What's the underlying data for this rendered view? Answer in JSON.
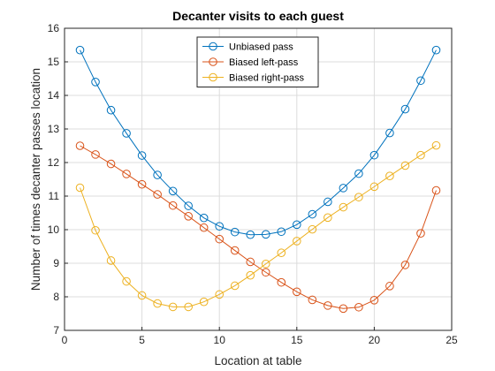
{
  "chart_data": {
    "type": "line",
    "title": "Decanter visits to each guest",
    "xlabel": "Location at table",
    "ylabel": "Number of times decanter passes location",
    "xlim": [
      0,
      25
    ],
    "ylim": [
      7,
      16
    ],
    "xticks": [
      "0",
      "5",
      "10",
      "15",
      "20",
      "25"
    ],
    "yticks": [
      "7",
      "8",
      "9",
      "10",
      "11",
      "12",
      "13",
      "14",
      "15",
      "16"
    ],
    "grid": true,
    "legend_position": "top-center",
    "marker": "circle",
    "x": [
      1,
      2,
      3,
      4,
      5,
      6,
      7,
      8,
      9,
      10,
      11,
      12,
      13,
      14,
      15,
      16,
      17,
      18,
      19,
      20,
      21,
      22,
      23,
      24
    ],
    "series": [
      {
        "name": "Unbiased pass",
        "color": "#0072BD",
        "values": [
          15.35,
          14.4,
          13.56,
          12.87,
          12.21,
          11.63,
          11.15,
          10.71,
          10.35,
          10.1,
          9.93,
          9.85,
          9.86,
          9.94,
          10.15,
          10.46,
          10.83,
          11.24,
          11.67,
          12.22,
          12.88,
          13.59,
          14.44,
          15.35
        ]
      },
      {
        "name": "Biased left-pass",
        "color": "#D95319",
        "values": [
          12.5,
          12.24,
          11.96,
          11.66,
          11.35,
          11.05,
          10.72,
          10.4,
          10.06,
          9.72,
          9.38,
          9.04,
          8.73,
          8.43,
          8.15,
          7.91,
          7.74,
          7.65,
          7.69,
          7.9,
          8.32,
          8.95,
          9.89,
          11.17
        ]
      },
      {
        "name": "Biased right-pass",
        "color": "#EDB120",
        "values": [
          11.25,
          9.98,
          9.08,
          8.46,
          8.04,
          7.8,
          7.7,
          7.7,
          7.85,
          8.07,
          8.33,
          8.64,
          8.98,
          9.31,
          9.66,
          10.01,
          10.36,
          10.67,
          10.97,
          11.28,
          11.6,
          11.91,
          12.22,
          12.51
        ]
      }
    ]
  }
}
